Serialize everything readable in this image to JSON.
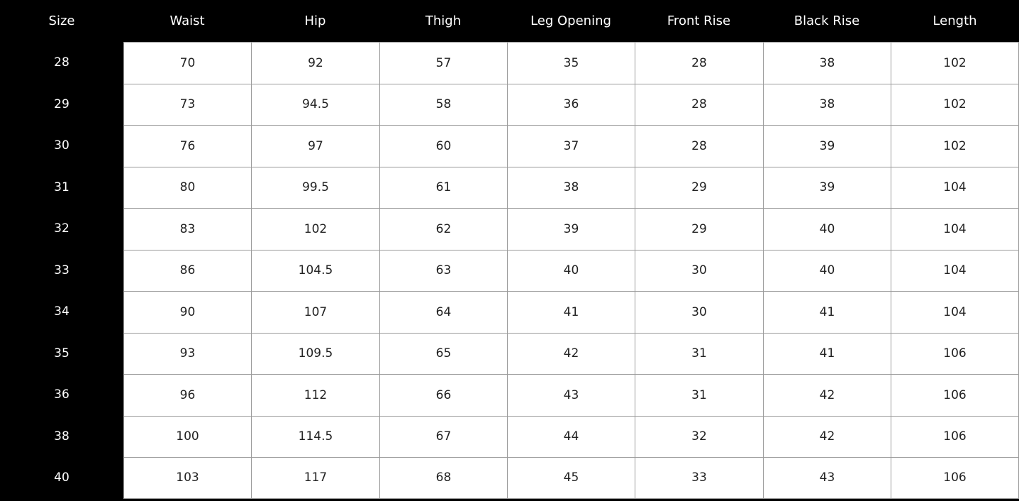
{
  "table": {
    "headers": [
      "Size",
      "Waist",
      "Hip",
      "Thigh",
      "Leg Opening",
      "Front Rise",
      "Black Rise",
      "Length"
    ],
    "rows": [
      [
        "28",
        "70",
        "92",
        "57",
        "35",
        "28",
        "38",
        "102"
      ],
      [
        "29",
        "73",
        "94.5",
        "58",
        "36",
        "28",
        "38",
        "102"
      ],
      [
        "30",
        "76",
        "97",
        "60",
        "37",
        "28",
        "39",
        "102"
      ],
      [
        "31",
        "80",
        "99.5",
        "61",
        "38",
        "29",
        "39",
        "104"
      ],
      [
        "32",
        "83",
        "102",
        "62",
        "39",
        "29",
        "40",
        "104"
      ],
      [
        "33",
        "86",
        "104.5",
        "63",
        "40",
        "30",
        "40",
        "104"
      ],
      [
        "34",
        "90",
        "107",
        "64",
        "41",
        "30",
        "41",
        "104"
      ],
      [
        "35",
        "93",
        "109.5",
        "65",
        "42",
        "31",
        "41",
        "106"
      ],
      [
        "36",
        "96",
        "112",
        "66",
        "43",
        "31",
        "42",
        "106"
      ],
      [
        "38",
        "100",
        "114.5",
        "67",
        "44",
        "32",
        "42",
        "106"
      ],
      [
        "40",
        "103",
        "117",
        "68",
        "45",
        "33",
        "43",
        "106"
      ]
    ]
  }
}
